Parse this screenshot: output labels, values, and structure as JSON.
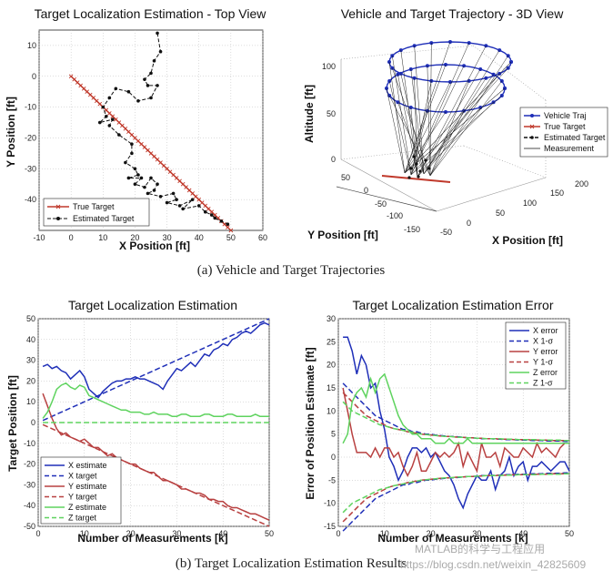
{
  "captions": {
    "a": "(a) Vehicle and Target Trajectories",
    "b": "(b) Target Localization Estimation Results"
  },
  "watermark": {
    "line1": "MATLAB的科学与工程应用",
    "line2": "https://blog.csdn.net/weixin_42825609"
  },
  "colors": {
    "red": "#c0392b",
    "black": "#111111",
    "blue": "#1f2fb8",
    "green": "#5fd35f"
  },
  "chart_data": [
    {
      "id": "topview",
      "type": "line",
      "title": "Target Localization Estimation - Top View",
      "xlabel": "X Position [ft]",
      "ylabel": "Y Position [ft]",
      "xlim": [
        -10,
        60
      ],
      "ylim": [
        -50,
        15
      ],
      "xticks": [
        -10,
        0,
        10,
        20,
        30,
        40,
        50,
        60
      ],
      "yticks": [
        -40,
        -30,
        -20,
        -10,
        0,
        10
      ],
      "grid": true,
      "legend": "bottom-left",
      "series": [
        {
          "name": "True Target",
          "style": "red-x",
          "x": [
            0,
            5,
            10,
            15,
            20,
            25,
            30,
            35,
            40,
            45,
            50
          ],
          "y": [
            0,
            -5,
            -10,
            -15,
            -20,
            -25,
            -30,
            -35,
            -40,
            -45,
            -50
          ]
        },
        {
          "name": "Estimated Target",
          "style": "black-dash-dot",
          "x": [
            27,
            28,
            26,
            25,
            23,
            24,
            27,
            25,
            21,
            18,
            14,
            12,
            10,
            11,
            9,
            13,
            12,
            15,
            19,
            19,
            17,
            20,
            21,
            18,
            22,
            20,
            23,
            25,
            27,
            26,
            24,
            28,
            32,
            33,
            30,
            34,
            38,
            35,
            40,
            42,
            44,
            45,
            47,
            49
          ],
          "y": [
            14,
            8,
            5,
            1,
            -1,
            -3,
            -3,
            -7,
            -8,
            -5,
            -4,
            -7,
            -10,
            -13,
            -15,
            -14,
            -16,
            -19,
            -22,
            -25,
            -28,
            -30,
            -32,
            -33,
            -33,
            -35,
            -36,
            -33,
            -35,
            -37,
            -38,
            -39,
            -38,
            -40,
            -41,
            -42,
            -40,
            -43,
            -42,
            -44,
            -45,
            -46,
            -47,
            -48
          ]
        }
      ]
    },
    {
      "id": "view3d",
      "type": "line",
      "title": "Vehicle and Target Trajectory - 3D View",
      "xlabel": "X Position [ft]",
      "ylabel": "Y Position [ft]",
      "zlabel": "Altitude [ft]",
      "xticks": [
        -50,
        0,
        50,
        100,
        150,
        200
      ],
      "yticks": [
        -150,
        -100,
        -50,
        0,
        50
      ],
      "zticks": [
        0,
        50,
        100
      ],
      "legend": "right",
      "legend_entries": [
        "Vehicle Traj",
        "True Target",
        "Estimated Target",
        "Measurement"
      ]
    },
    {
      "id": "est",
      "type": "line",
      "title": "Target Localization Estimation",
      "xlabel": "Number of Measurements [k]",
      "ylabel": "Target Position [ft]",
      "xlim": [
        0,
        50
      ],
      "ylim": [
        -50,
        50
      ],
      "xticks": [
        0,
        10,
        20,
        30,
        40,
        50
      ],
      "yticks": [
        -50,
        -40,
        -30,
        -20,
        -10,
        0,
        10,
        20,
        30,
        40,
        50
      ],
      "grid": true,
      "legend": "bottom-left",
      "x": [
        1,
        2,
        3,
        4,
        5,
        6,
        7,
        8,
        9,
        10,
        11,
        12,
        13,
        14,
        15,
        16,
        17,
        18,
        19,
        20,
        21,
        22,
        23,
        24,
        25,
        26,
        27,
        28,
        29,
        30,
        31,
        32,
        33,
        34,
        35,
        36,
        37,
        38,
        39,
        40,
        41,
        42,
        43,
        44,
        45,
        46,
        47,
        48,
        49,
        50
      ],
      "series": [
        {
          "name": "X estimate",
          "color": "#1f2fb8",
          "dash": false,
          "values": [
            27,
            28,
            26,
            27,
            25,
            24,
            21,
            23,
            25,
            22,
            16,
            14,
            12,
            15,
            17,
            19,
            20,
            20,
            21,
            21,
            22,
            21,
            21,
            20,
            19,
            18,
            16,
            20,
            23,
            26,
            25,
            27,
            29,
            27,
            30,
            33,
            32,
            35,
            36,
            38,
            37,
            40,
            41,
            43,
            44,
            43,
            45,
            47,
            48,
            47
          ]
        },
        {
          "name": "X target",
          "color": "#1f2fb8",
          "dash": true,
          "values": [
            1,
            2,
            3,
            4,
            5,
            6,
            7,
            8,
            9,
            10,
            11,
            12,
            13,
            14,
            15,
            16,
            17,
            18,
            19,
            20,
            21,
            22,
            23,
            24,
            25,
            26,
            27,
            28,
            29,
            30,
            31,
            32,
            33,
            34,
            35,
            36,
            37,
            38,
            39,
            40,
            41,
            42,
            43,
            44,
            45,
            46,
            47,
            48,
            49,
            50
          ]
        },
        {
          "name": "Y estimate",
          "color": "#b84040",
          "dash": false,
          "values": [
            14,
            8,
            2,
            -3,
            -6,
            -5,
            -7,
            -8,
            -9,
            -8,
            -10,
            -12,
            -12,
            -14,
            -16,
            -15,
            -17,
            -18,
            -19,
            -20,
            -20,
            -22,
            -23,
            -24,
            -24,
            -26,
            -28,
            -28,
            -29,
            -30,
            -32,
            -32,
            -33,
            -34,
            -34,
            -35,
            -37,
            -37,
            -38,
            -38,
            -40,
            -41,
            -41,
            -42,
            -43,
            -44,
            -44,
            -45,
            -46,
            -47
          ]
        },
        {
          "name": "Y target",
          "color": "#b84040",
          "dash": true,
          "values": [
            -1,
            -2,
            -3,
            -4,
            -5,
            -6,
            -7,
            -8,
            -9,
            -10,
            -11,
            -12,
            -13,
            -14,
            -15,
            -16,
            -17,
            -18,
            -19,
            -20,
            -21,
            -22,
            -23,
            -24,
            -25,
            -26,
            -27,
            -28,
            -29,
            -30,
            -31,
            -32,
            -33,
            -34,
            -35,
            -36,
            -37,
            -38,
            -39,
            -40,
            -41,
            -42,
            -43,
            -44,
            -45,
            -46,
            -47,
            -48,
            -49,
            -50
          ]
        },
        {
          "name": "Z estimate",
          "color": "#5fd35f",
          "dash": false,
          "values": [
            2,
            5,
            10,
            16,
            18,
            19,
            17,
            16,
            18,
            17,
            13,
            12,
            11,
            10,
            9,
            8,
            7,
            6,
            6,
            5,
            5,
            5,
            4,
            4,
            5,
            4,
            4,
            4,
            3,
            3,
            4,
            4,
            3,
            3,
            3,
            4,
            4,
            3,
            3,
            3,
            4,
            4,
            3,
            3,
            3,
            3,
            4,
            3,
            3,
            3
          ]
        },
        {
          "name": "Z target",
          "color": "#5fd35f",
          "dash": true,
          "values": [
            0,
            0,
            0,
            0,
            0,
            0,
            0,
            0,
            0,
            0,
            0,
            0,
            0,
            0,
            0,
            0,
            0,
            0,
            0,
            0,
            0,
            0,
            0,
            0,
            0,
            0,
            0,
            0,
            0,
            0,
            0,
            0,
            0,
            0,
            0,
            0,
            0,
            0,
            0,
            0,
            0,
            0,
            0,
            0,
            0,
            0,
            0,
            0,
            0,
            0
          ]
        }
      ]
    },
    {
      "id": "err",
      "type": "line",
      "title": "Target Localization Estimation Error",
      "xlabel": "Number of Measurements [k]",
      "ylabel": "Error of Position Estimate [ft]",
      "xlim": [
        0,
        50
      ],
      "ylim": [
        -15,
        30
      ],
      "xticks": [
        0,
        10,
        20,
        30,
        40,
        50
      ],
      "yticks": [
        -15,
        -10,
        -5,
        0,
        5,
        10,
        15,
        20,
        25,
        30
      ],
      "grid": true,
      "legend": "top-right",
      "x": [
        1,
        2,
        3,
        4,
        5,
        6,
        7,
        8,
        9,
        10,
        11,
        12,
        13,
        14,
        15,
        16,
        17,
        18,
        19,
        20,
        21,
        22,
        23,
        24,
        25,
        26,
        27,
        28,
        29,
        30,
        31,
        32,
        33,
        34,
        35,
        36,
        37,
        38,
        39,
        40,
        41,
        42,
        43,
        44,
        45,
        46,
        47,
        48,
        49,
        50
      ],
      "series": [
        {
          "name": "X error",
          "color": "#1f2fb8",
          "dash": false,
          "values": [
            26,
            26,
            23,
            18,
            22,
            20,
            15,
            16,
            10,
            6,
            0,
            -2,
            -5,
            -3,
            0,
            2,
            2,
            1,
            2,
            0,
            1,
            -1,
            -3,
            -4,
            -6,
            -9,
            -11,
            -8,
            -6,
            -4,
            -5,
            -5,
            -3,
            -7,
            -4,
            -3,
            0,
            -4,
            -2,
            -1,
            -5,
            -2,
            -2,
            -1,
            -2,
            -3,
            -2,
            -1,
            -1,
            -3
          ]
        },
        {
          "name": "X 1-σ",
          "color": "#1f2fb8",
          "dash": true,
          "values": [
            16,
            15,
            14,
            13,
            12,
            11,
            10,
            9,
            8.5,
            8,
            7.5,
            7,
            6.5,
            6,
            6,
            5.5,
            5.5,
            5.2,
            5,
            5,
            4.8,
            4.7,
            4.6,
            4.5,
            4.5,
            4.4,
            4.3,
            4.2,
            4.2,
            4.1,
            4,
            4,
            4,
            3.9,
            3.9,
            3.8,
            3.8,
            3.8,
            3.7,
            3.7,
            3.7,
            3.6,
            3.6,
            3.6,
            3.5,
            3.5,
            3.5,
            3.5,
            3.4,
            3.4
          ]
        },
        {
          "name": "Y error",
          "color": "#b84040",
          "dash": false,
          "values": [
            15,
            10,
            5,
            1,
            1,
            1,
            0,
            2,
            0,
            2,
            2,
            0,
            1,
            -2,
            -4,
            -2,
            1,
            -3,
            -3,
            -1,
            1,
            0,
            1,
            0,
            1,
            3,
            -2,
            1,
            -1,
            -3,
            3,
            0,
            0,
            1,
            -2,
            2,
            1,
            0,
            0,
            2,
            1,
            0,
            3,
            1,
            2,
            1,
            0,
            2,
            3,
            3
          ]
        },
        {
          "name": "Y 1-σ",
          "color": "#b84040",
          "dash": true,
          "values": [
            14,
            13,
            12,
            11,
            10,
            9,
            8.5,
            8,
            7.5,
            7,
            6.5,
            6.2,
            6,
            5.8,
            5.5,
            5.3,
            5.2,
            5,
            4.9,
            4.8,
            4.7,
            4.6,
            4.5,
            4.5,
            4.4,
            4.3,
            4.3,
            4.2,
            4.2,
            4.1,
            4.1,
            4,
            4,
            4,
            3.9,
            3.9,
            3.9,
            3.8,
            3.8,
            3.8,
            3.8,
            3.7,
            3.7,
            3.7,
            3.7,
            3.6,
            3.6,
            3.6,
            3.6,
            3.6
          ]
        },
        {
          "name": "Z error",
          "color": "#5fd35f",
          "dash": false,
          "values": [
            3,
            5,
            12,
            14,
            15,
            13,
            17,
            14,
            17,
            18,
            15,
            12,
            9,
            7,
            6,
            5,
            5,
            4,
            4,
            4,
            3,
            3,
            3,
            4,
            3,
            3,
            3,
            4,
            3,
            3,
            3,
            3,
            3,
            3,
            3,
            3,
            3,
            3,
            3,
            3,
            3,
            3,
            3,
            3,
            3,
            3,
            3,
            3,
            3,
            3
          ]
        },
        {
          "name": "Z 1-σ",
          "color": "#5fd35f",
          "dash": true,
          "values": [
            12,
            11,
            10,
            9.5,
            9,
            8.5,
            8,
            7.5,
            7,
            6.8,
            6.5,
            6.2,
            6,
            5.8,
            5.6,
            5.4,
            5.2,
            5,
            4.9,
            4.8,
            4.7,
            4.6,
            4.5,
            4.5,
            4.4,
            4.3,
            4.3,
            4.2,
            4.2,
            4.1,
            4.1,
            4,
            4,
            4,
            4,
            3.9,
            3.9,
            3.9,
            3.8,
            3.8,
            3.8,
            3.8,
            3.8,
            3.7,
            3.7,
            3.7,
            3.7,
            3.7,
            3.6,
            3.6
          ]
        }
      ]
    }
  ]
}
